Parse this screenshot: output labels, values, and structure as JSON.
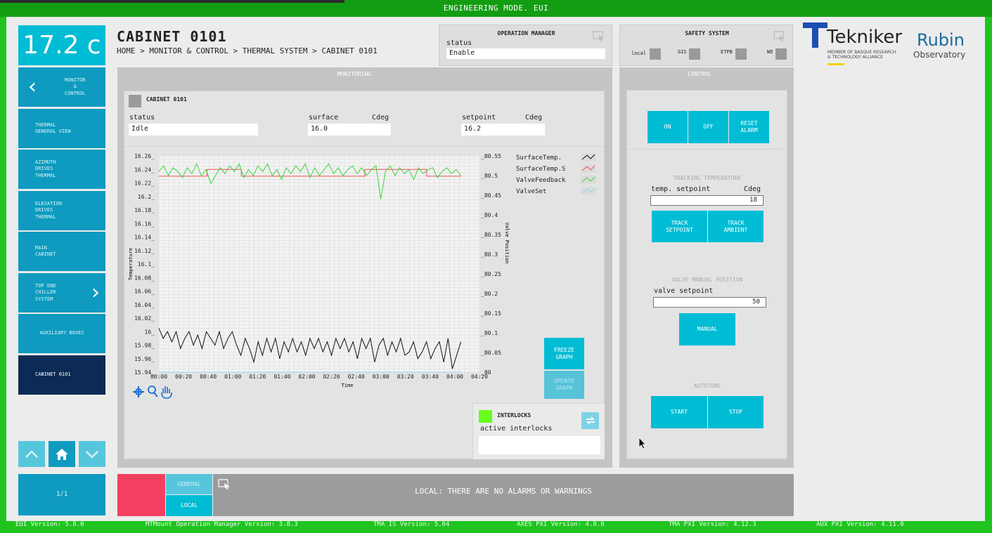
{
  "window": {
    "title": "ENGINEERING MODE. EUI"
  },
  "temperature": {
    "value": "17.2 c"
  },
  "sidebar": {
    "items": [
      {
        "label": "MONITOR\n&\nCONTROL"
      },
      {
        "label": "THERMAL\nGENERAL VIEW"
      },
      {
        "label": "AZIMUTH\nDRIVES\nTHERMAL"
      },
      {
        "label": "ELEVATION\nDRIVES\nTHERMAL"
      },
      {
        "label": "MAIN\nCABINET"
      },
      {
        "label": "TOP END\nCHILLER\nSYSTEM"
      },
      {
        "label": "AUXILIARY BOXES"
      },
      {
        "label": "CABINET 0101"
      }
    ],
    "page_indicator": "1/1"
  },
  "header": {
    "title": "CABINET 0101",
    "breadcrumb": "HOME > MONITOR & CONTROL > THERMAL SYSTEM > CABINET 0101"
  },
  "operation_manager": {
    "title": "OPERATION MANAGER",
    "status_label": "status",
    "status_value": "Enable"
  },
  "safety_system": {
    "title": "SAFETY SYSTEM",
    "indicators": [
      {
        "label": "local"
      },
      {
        "label": "GIS"
      },
      {
        "label": "ETPB"
      },
      {
        "label": "WD"
      }
    ]
  },
  "logos": {
    "tekniker": "Tekniker",
    "tekniker_sub": "MEMBER OF BASQUE RESEARCH\n& TECHNOLOGY ALLIANCE",
    "rubin": "Rubin",
    "rubin_sub": "Observatory"
  },
  "monitoring": {
    "title": "MONITORING",
    "cabinet_label": "CABINET 0101",
    "status_label": "status",
    "status_value": "Idle",
    "surface_label": "surface",
    "surface_unit": "Cdeg",
    "surface_value": "16.0",
    "setpoint_label": "setpoint",
    "setpoint_unit": "Cdeg",
    "setpoint_value": "16.2",
    "freeze_label": "FREEZE GRAPH",
    "update_label": "UPDATE GRAPH",
    "interlocks_title": "INTERLOCKS",
    "active_interlocks_label": "active interlocks"
  },
  "chart_data": {
    "type": "line",
    "xlabel": "Time",
    "ylabel": "Temperature",
    "y2label": "Valve Position",
    "x_ticks": [
      "00:00",
      "00:20",
      "00:40",
      "01:00",
      "01:20",
      "01:40",
      "02:00",
      "02:20",
      "02:40",
      "03:00",
      "03:20",
      "03:40",
      "04:00",
      "04:20"
    ],
    "y_ticks": [
      "16.26",
      "16.24",
      "16.22",
      "16.2",
      "16.18",
      "16.16",
      "16.14",
      "16.12",
      "16.1",
      "16.08",
      "16.06",
      "16.04",
      "16.02",
      "16",
      "15.98",
      "15.96",
      "15.94"
    ],
    "y2_ticks": [
      "80.55",
      "80.5",
      "80.45",
      "80.4",
      "80.35",
      "80.3",
      "80.25",
      "80.2",
      "80.15",
      "80.1",
      "80.05",
      "80"
    ],
    "ylim": [
      15.94,
      16.26
    ],
    "y2lim": [
      80,
      80.55
    ],
    "legend": [
      {
        "name": "SurfaceTemp.",
        "color": "#111111"
      },
      {
        "name": "SurfaceTemp.S",
        "color": "#e85050"
      },
      {
        "name": "ValveFeedback",
        "color": "#3bd43b"
      },
      {
        "name": "ValveSet",
        "color": "#8fd8ee"
      }
    ],
    "series": [
      {
        "name": "SurfaceTemp.",
        "axis": "left",
        "color": "#111111",
        "x_start": "00:00",
        "x_end": "04:05",
        "values": [
          16.005,
          15.99,
          16.0,
          15.985,
          16.0,
          15.975,
          15.99,
          16.0,
          15.98,
          15.995,
          15.975,
          16.0,
          15.99,
          15.98,
          16.0,
          15.975,
          15.99,
          16.0,
          15.98,
          15.965,
          15.99,
          15.975,
          15.955,
          15.985,
          15.965,
          15.99,
          15.97,
          15.99,
          15.96,
          15.985,
          15.97,
          15.99,
          15.97,
          15.985,
          15.965,
          15.99,
          15.975,
          15.99,
          15.97,
          15.985,
          15.965,
          15.99,
          15.975,
          15.99,
          15.97,
          15.985,
          15.96,
          15.99,
          15.975,
          15.99,
          15.955,
          15.98,
          15.99,
          15.965,
          15.985,
          15.97,
          15.99,
          15.965,
          15.97,
          15.985,
          15.96,
          15.97,
          15.985,
          15.96,
          15.975,
          15.985,
          15.955,
          15.99,
          15.945,
          15.965,
          15.985
        ]
      },
      {
        "name": "SurfaceTemp.S",
        "axis": "left",
        "color": "#e85050",
        "x_start": "00:00",
        "x_end": "04:05",
        "values": [
          16.23,
          16.23,
          16.23,
          16.23,
          16.23,
          16.23,
          16.23,
          16.24,
          16.24,
          16.24,
          16.24,
          16.24,
          16.23,
          16.23,
          16.23,
          16.23,
          16.23,
          16.23,
          16.23,
          16.23,
          16.23,
          16.23,
          16.23,
          16.23,
          16.23,
          16.23,
          16.23,
          16.23,
          16.23,
          16.23,
          16.24,
          16.24,
          16.24,
          16.24,
          16.24,
          16.24,
          16.24,
          16.24,
          16.24,
          16.23,
          16.23,
          16.23,
          16.23,
          16.23,
          16.23
        ]
      },
      {
        "name": "ValveFeedback",
        "axis": "right",
        "color": "#3bd43b",
        "x_start": "00:00",
        "x_end": "04:05",
        "values": [
          80.51,
          80.525,
          80.5,
          80.52,
          80.51,
          80.495,
          80.52,
          80.505,
          80.53,
          80.5,
          80.515,
          80.48,
          80.5,
          80.52,
          80.505,
          80.525,
          80.51,
          80.53,
          80.495,
          80.515,
          80.5,
          80.525,
          80.51,
          80.53,
          80.5,
          80.515,
          80.49,
          80.52,
          80.505,
          80.525,
          80.51,
          80.53,
          80.495,
          80.52,
          80.5,
          80.515,
          80.53,
          80.505,
          80.52,
          80.5,
          80.515,
          80.525,
          80.505,
          80.52,
          80.5,
          80.515,
          80.525,
          80.44,
          80.51,
          80.525,
          80.5,
          80.52,
          80.505,
          80.515,
          80.49,
          80.52,
          80.505,
          80.515,
          80.52,
          80.495,
          80.51,
          80.52,
          80.505,
          80.515,
          80.5
        ]
      },
      {
        "name": "ValveSet",
        "axis": "right",
        "color": "#8fd8ee",
        "x_start": "00:00",
        "x_end": "04:05",
        "values": [
          80.0,
          80.0
        ]
      }
    ]
  },
  "control": {
    "title": "CONTROL",
    "on_label": "ON",
    "off_label": "OFF",
    "reset_label": "RESET\nALARM",
    "tracking_title": "TRACKING TEMPERATURE",
    "temp_setpoint_label": "temp. setpoint",
    "temp_setpoint_unit": "Cdeg",
    "temp_setpoint_value": "18",
    "track_setpoint_label": "TRACK\nSETPOINT",
    "track_ambient_label": "TRACK\nAMBIENT",
    "valve_title": "VALVE MANUAL POSITION",
    "valve_setpoint_label": "valve setpoint",
    "valve_setpoint_value": "50",
    "manual_label": "MANUAL",
    "autotune_title": "AUTOTUNE",
    "start_label": "START",
    "stop_label": "STOP"
  },
  "alarms": {
    "general_label": "GENERAL",
    "local_label": "LOCAL",
    "message": "LOCAL: THERE ARE NO ALARMS OR WARNINGS"
  },
  "footer": {
    "versions": [
      "EUI Version: 5.8.0",
      "MTMount Operation Manager Version: 3.8.3",
      "TMA IS Version: 5.04",
      "AXES PXI Version: 4.8.0",
      "TMA PXI Version: 4.12.3",
      "AUX PXI Version: 4.11.0"
    ]
  },
  "colors": {
    "accent": "#00bcd4",
    "frame": "#1fc41f",
    "alarm": "#f44060",
    "interlock_ok": "#66ff1a"
  }
}
